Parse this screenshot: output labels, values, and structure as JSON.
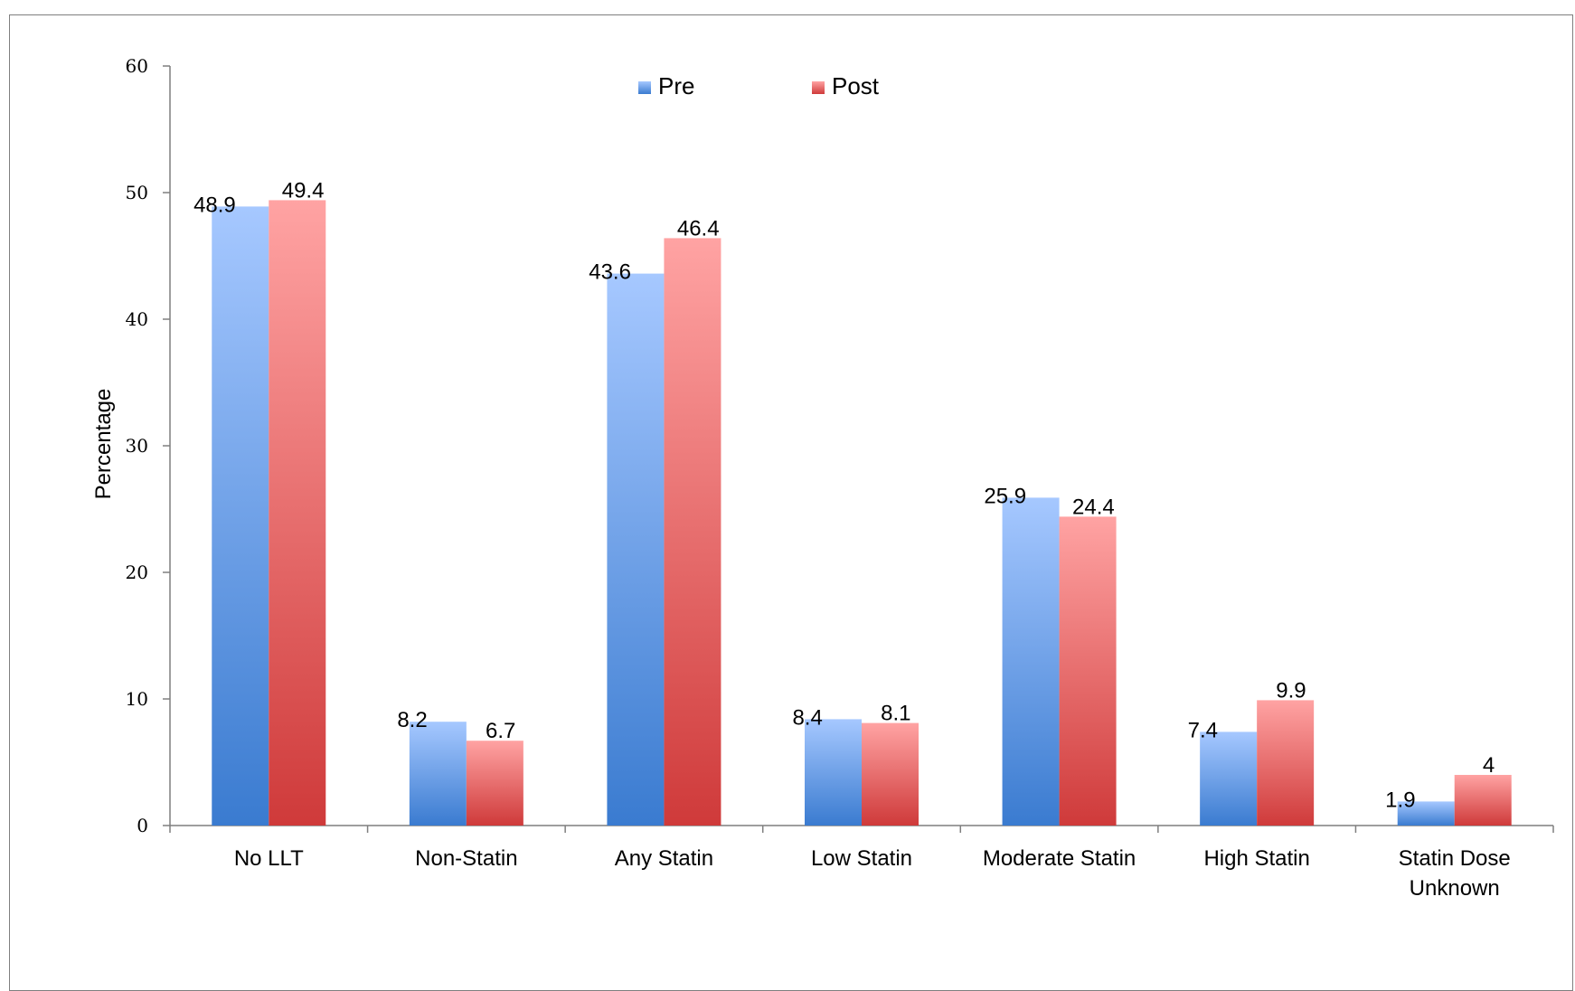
{
  "chart_data": {
    "type": "bar",
    "title": "",
    "xlabel": "",
    "ylabel": "Percentage",
    "ylim": [
      0,
      60
    ],
    "yticks": [
      0,
      10,
      20,
      30,
      40,
      50,
      60
    ],
    "grid": false,
    "legend_position": "top-center",
    "categories": [
      [
        "No LLT"
      ],
      [
        "Non-Statin"
      ],
      [
        "Any Statin"
      ],
      [
        "Low Statin"
      ],
      [
        "Moderate Statin"
      ],
      [
        "High Statin"
      ],
      [
        "Statin Dose",
        "Unknown"
      ]
    ],
    "series": [
      {
        "name": "Pre",
        "values": [
          48.9,
          8.2,
          43.6,
          8.4,
          25.9,
          7.4,
          1.9
        ],
        "labels": [
          "48.9",
          "8.2",
          "43.6",
          "8.4",
          "25.9",
          "7.4",
          "1.9"
        ]
      },
      {
        "name": "Post",
        "values": [
          49.4,
          6.7,
          46.4,
          8.1,
          24.4,
          9.9,
          4
        ],
        "labels": [
          "49.4",
          "6.7",
          "46.4",
          "8.1",
          "24.4",
          "9.9",
          "4"
        ]
      }
    ],
    "colors": {
      "Pre": {
        "top": "#a6c8ff",
        "bottom": "#3a7bd0"
      },
      "Post": {
        "top": "#ffa3a3",
        "bottom": "#cf3a3a"
      },
      "axis": "#7f7f7f"
    }
  }
}
